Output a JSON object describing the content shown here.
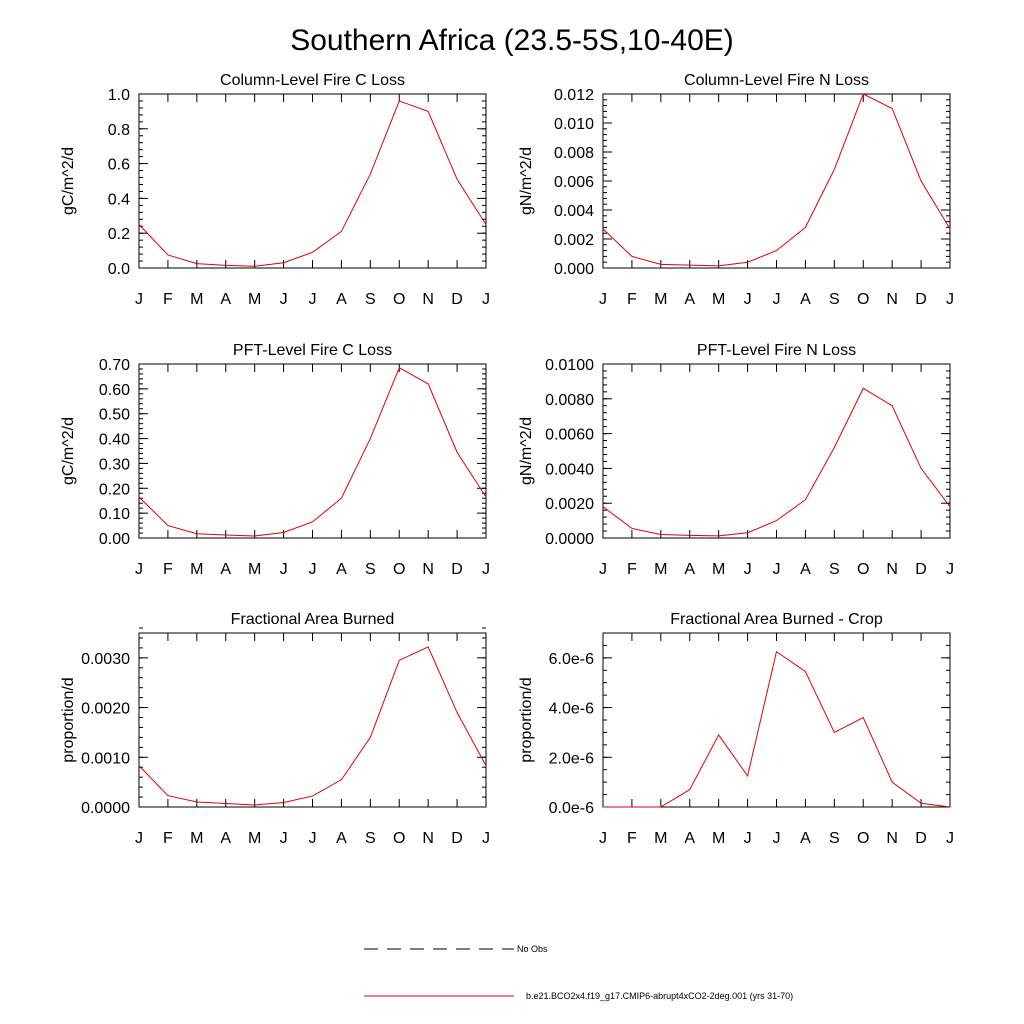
{
  "title": "Southern Africa (23.5-5S,10-40E)",
  "months": [
    "J",
    "F",
    "M",
    "A",
    "M",
    "J",
    "J",
    "A",
    "S",
    "O",
    "N",
    "D",
    "J"
  ],
  "legend": {
    "no_obs": "No Obs",
    "model": "b.e21.BCO2x4.f19_g17.CMIP6-abrupt4xCO2-2deg.001 (yrs 31-70)"
  },
  "colors": {
    "series": "#e00000",
    "axis": "#000000"
  },
  "chart_data": [
    {
      "type": "line",
      "title": "Column-Level Fire C Loss",
      "ylabel": "gC/m^2/d",
      "ylim": [
        0,
        1.0
      ],
      "yticks": [
        0,
        0.2,
        0.4,
        0.6,
        0.8,
        1.0
      ],
      "ytick_labels": [
        "0.0",
        "0.2",
        "0.4",
        "0.6",
        "0.8",
        "1.0"
      ],
      "series": [
        {
          "values": [
            0.25,
            0.075,
            0.025,
            0.015,
            0.01,
            0.03,
            0.09,
            0.21,
            0.54,
            0.96,
            0.9,
            0.51,
            0.25
          ]
        }
      ]
    },
    {
      "type": "line",
      "title": "Column-Level Fire N Loss",
      "ylabel": "gN/m^2/d",
      "ylim": [
        0,
        0.012
      ],
      "yticks": [
        0,
        0.002,
        0.004,
        0.006,
        0.008,
        0.01,
        0.012
      ],
      "ytick_labels": [
        "0.000",
        "0.002",
        "0.004",
        "0.006",
        "0.008",
        "0.010",
        "0.012"
      ],
      "series": [
        {
          "values": [
            0.0027,
            0.0008,
            0.00025,
            0.0002,
            0.00015,
            0.0004,
            0.0012,
            0.0028,
            0.0068,
            0.012,
            0.011,
            0.006,
            0.0027
          ]
        }
      ]
    },
    {
      "type": "line",
      "title": "PFT-Level Fire C Loss",
      "ylabel": "gC/m^2/d",
      "ylim": [
        0,
        0.7
      ],
      "yticks": [
        0,
        0.1,
        0.2,
        0.3,
        0.4,
        0.5,
        0.6,
        0.7
      ],
      "ytick_labels": [
        "0.00",
        "0.10",
        "0.20",
        "0.30",
        "0.40",
        "0.50",
        "0.60",
        "0.70"
      ],
      "series": [
        {
          "values": [
            0.165,
            0.05,
            0.017,
            0.012,
            0.008,
            0.022,
            0.065,
            0.16,
            0.4,
            0.685,
            0.62,
            0.345,
            0.165
          ]
        }
      ]
    },
    {
      "type": "line",
      "title": "PFT-Level Fire N Loss",
      "ylabel": "gN/m^2/d",
      "ylim": [
        0,
        0.01
      ],
      "yticks": [
        0,
        0.002,
        0.004,
        0.006,
        0.008,
        0.01
      ],
      "ytick_labels": [
        "0.0000",
        "0.0020",
        "0.0040",
        "0.0060",
        "0.0080",
        "0.0100"
      ],
      "series": [
        {
          "values": [
            0.0018,
            0.00055,
            0.0002,
            0.00015,
            0.00012,
            0.0003,
            0.001,
            0.0022,
            0.0052,
            0.0086,
            0.0076,
            0.004,
            0.0018
          ]
        }
      ]
    },
    {
      "type": "line",
      "title": "Fractional Area Burned",
      "ylabel": "proportion/d",
      "ylim": [
        0,
        0.0035
      ],
      "yticks": [
        0,
        0.001,
        0.002,
        0.003
      ],
      "ytick_labels": [
        "0.0000",
        "0.0010",
        "0.0020",
        "0.0030"
      ],
      "minor_step": 0.0002,
      "series": [
        {
          "values": [
            0.00083,
            0.00023,
            0.0001,
            7e-05,
            4e-05,
            9e-05,
            0.00022,
            0.00055,
            0.0014,
            0.00295,
            0.00322,
            0.0019,
            0.00083
          ]
        }
      ]
    },
    {
      "type": "line",
      "title": "Fractional Area Burned - Crop",
      "ylabel": "proportion/d",
      "ylim": [
        0,
        7e-06
      ],
      "yticks": [
        0,
        2e-06,
        4e-06,
        6e-06
      ],
      "ytick_labels": [
        "0.0e-6",
        "2.0e-6",
        "4.0e-6",
        "6.0e-6"
      ],
      "minor_step": 5e-07,
      "series": [
        {
          "values": [
            0,
            0,
            0,
            7e-07,
            2.9e-06,
            1.25e-06,
            6.25e-06,
            5.45e-06,
            3e-06,
            3.6e-06,
            1e-06,
            1.5e-07,
            0
          ]
        }
      ]
    }
  ]
}
